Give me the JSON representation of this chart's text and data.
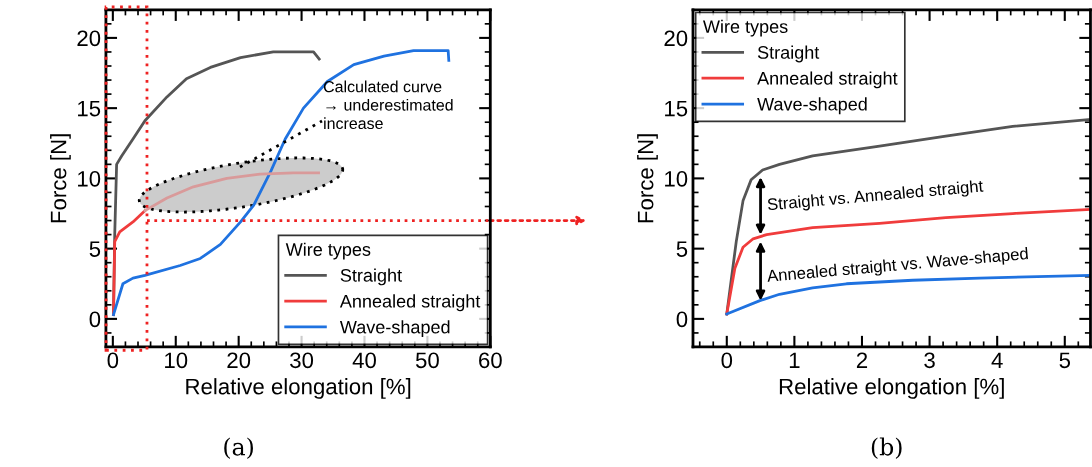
{
  "chart_data": [
    {
      "type": "line",
      "xlabel": "Relative elongation [%]",
      "ylabel": "Force [N]",
      "xlim": [
        -1.1,
        60
      ],
      "ylim": [
        -2,
        22
      ],
      "xticks": [
        0,
        10,
        20,
        30,
        40,
        50,
        60
      ],
      "yticks": [
        0,
        5,
        10,
        15,
        20
      ],
      "legend": "bottom right",
      "legend_title": "Wire types",
      "ref_lines": [
        {
          "axis": "y",
          "value": 7,
          "color": "#ee2222",
          "line_style": "dotted"
        }
      ],
      "annotations": [
        "Calculated curve\n→ underestimated\nincrease",
        "(a)"
      ],
      "series": [
        {
          "name": "Straight",
          "color": "#555555",
          "x": [
            0.1,
            0.3,
            0.6,
            1.4,
            3.2,
            5.1,
            8.6,
            11.7,
            15.5,
            20.3,
            25.5,
            31.9,
            32.8
          ],
          "values": [
            0.3,
            6,
            11.0,
            11.6,
            12.8,
            14.1,
            15.8,
            17.1,
            17.9,
            18.6,
            19.0,
            19.0,
            18.5
          ]
        },
        {
          "name": "Annealed straight",
          "color": "#f03c3c",
          "x": [
            0.1,
            0.3,
            1.1,
            3.2,
            5.1
          ],
          "values": [
            0.3,
            5.5,
            6.2,
            6.9,
            7.7
          ]
        },
        {
          "name": "Wave-shaped",
          "color": "#1f72e0",
          "x": [
            0.1,
            1.6,
            3.2,
            5.1,
            10.7,
            13.9,
            17.1,
            20.3,
            22.4,
            25.1,
            27.4,
            30.3,
            34.1,
            38.3,
            43.1,
            47.8,
            53.3,
            53.4
          ],
          "values": [
            0.3,
            2.5,
            2.9,
            3.1,
            3.8,
            4.3,
            5.3,
            6.9,
            8.1,
            10.5,
            12.8,
            15.0,
            16.9,
            18.1,
            18.7,
            19.1,
            19.1,
            18.4
          ]
        },
        {
          "color": "#d99a9a",
          "x": [
            5.1,
            8.6,
            12.8,
            18.1,
            23.4,
            28.7,
            32.7
          ],
          "values": [
            7.7,
            8.6,
            9.4,
            10.0,
            10.3,
            10.4,
            10.4
          ]
        }
      ]
    },
    {
      "type": "line",
      "xlabel": "Relative elongation [%]",
      "ylabel": "Force [N]",
      "xlim": [
        -0.5,
        5.38
      ],
      "ylim": [
        -2,
        22
      ],
      "xticks": [
        0,
        1,
        2,
        3,
        4,
        5
      ],
      "yticks": [
        0,
        5,
        10,
        15,
        20
      ],
      "legend": "top left",
      "legend_title": "Wire types",
      "annotations": [
        "Straight vs. Annealed straight",
        "Annealed straight vs. Wave-shaped",
        "(b)"
      ],
      "series": [
        {
          "name": "Straight",
          "color": "#555555",
          "x": [
            0,
            0.14,
            0.24,
            0.36,
            0.53,
            0.78,
            1.27,
            2.26,
            3.24,
            4.23,
            5.38
          ],
          "values": [
            0.35,
            5.5,
            8.4,
            9.9,
            10.6,
            11.0,
            11.6,
            12.3,
            13.0,
            13.7,
            14.2
          ]
        },
        {
          "name": "Annealed straight",
          "color": "#f03c3c",
          "x": [
            0,
            0.12,
            0.24,
            0.39,
            0.59,
            1.27,
            2.26,
            3.24,
            4.23,
            5.38
          ],
          "values": [
            0.35,
            3.6,
            5.1,
            5.7,
            6.0,
            6.5,
            6.8,
            7.2,
            7.5,
            7.8
          ]
        },
        {
          "name": "Wave-shaped",
          "color": "#1f72e0",
          "x": [
            0,
            0.49,
            0.78,
            1.27,
            1.77,
            2.75,
            3.74,
            5.38
          ],
          "values": [
            0.35,
            1.3,
            1.75,
            2.2,
            2.5,
            2.75,
            2.9,
            3.1
          ]
        }
      ]
    }
  ]
}
